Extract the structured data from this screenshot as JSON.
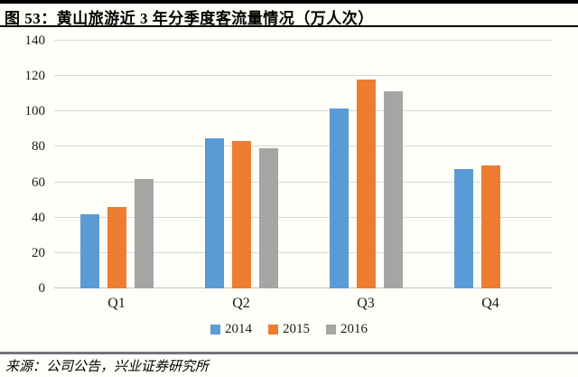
{
  "figure": {
    "label": "图 53：",
    "title": "黄山旅游近 3 年分季度客流量情况（万人次）"
  },
  "chart_data": {
    "type": "bar",
    "categories": [
      "Q1",
      "Q2",
      "Q3",
      "Q4"
    ],
    "series": [
      {
        "name": "2014",
        "color": "#5B9BD5",
        "values": [
          42,
          85,
          101.5,
          67.5
        ]
      },
      {
        "name": "2015",
        "color": "#ED7D31",
        "values": [
          46,
          83.5,
          118,
          69.5
        ]
      },
      {
        "name": "2016",
        "color": "#A5A5A5",
        "values": [
          62,
          79,
          111.5,
          null
        ]
      }
    ],
    "title": "黄山旅游近 3 年分季度客流量情况（万人次）",
    "xlabel": "",
    "ylabel": "",
    "ylim": [
      0,
      140
    ],
    "ytick_step": 20,
    "grid": true,
    "legend_position": "bottom",
    "colors": {
      "gridline": "#d9d9d9",
      "axis_text": "#1a1a1a"
    }
  },
  "source": {
    "text": "来源：公司公告，兴业证券研究所"
  }
}
